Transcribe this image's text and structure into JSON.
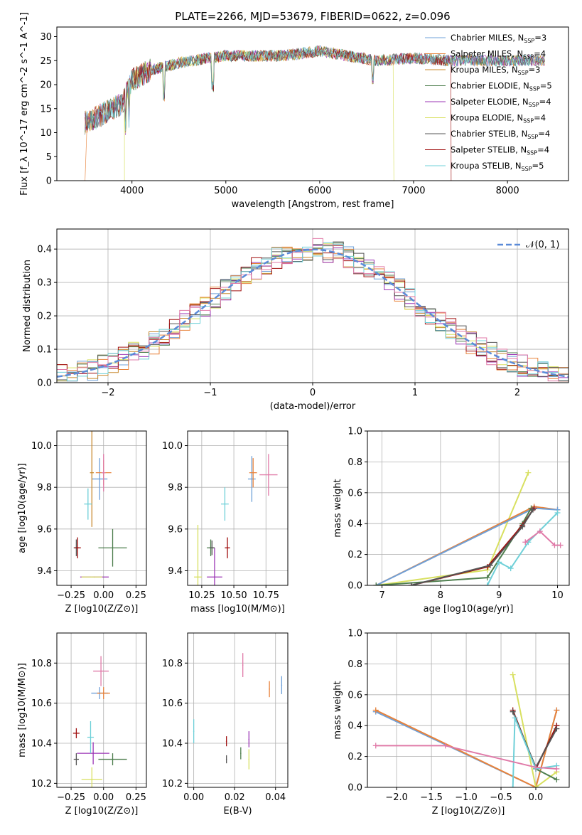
{
  "title": "PLATE=2266, MJD=53679, FIBERID=0622, z=0.096",
  "colors": {
    "Chabrier MILES": "#6fa0d8",
    "Salpeter MILES": "#e8823a",
    "Kroupa MILES": "#c8892e",
    "Chabrier ELODIE": "#4f7f4f",
    "Salpeter ELODIE": "#9b35b5",
    "Kroupa ELODIE": "#d8e060",
    "Chabrier STELIB": "#555555",
    "Salpeter STELIB": "#a01010",
    "Kroupa STELIB": "#6fd0d8",
    "gaussian": "#5b8bd8",
    "pink": "#e07aa8"
  },
  "chart_data": [
    {
      "type": "line",
      "name": "spectrum",
      "xlabel": "wavelength [Angstrom, rest frame]",
      "ylabel": "Flux [f_λ 10^-17 erg cm^-2 s^-1 A^-1]",
      "xlim": [
        3200,
        8650
      ],
      "ylim": [
        0,
        32
      ],
      "xticks": [
        "4000",
        "5000",
        "6000",
        "7000",
        "8000"
      ],
      "yticks": [
        "0",
        "5",
        "10",
        "15",
        "20",
        "25",
        "30"
      ],
      "legend_position": "right",
      "legend": [
        {
          "model": "Chabrier MILES",
          "n": "3"
        },
        {
          "model": "Salpeter MILES",
          "n": "4"
        },
        {
          "model": "Kroupa MILES",
          "n": "3"
        },
        {
          "model": "Chabrier ELODIE",
          "n": "5"
        },
        {
          "model": "Salpeter ELODIE",
          "n": "4"
        },
        {
          "model": "Kroupa ELODIE",
          "n": "4"
        },
        {
          "model": "Chabrier STELIB",
          "n": "4"
        },
        {
          "model": "Salpeter STELIB",
          "n": "4"
        },
        {
          "model": "Kroupa STELIB",
          "n": "5"
        }
      ],
      "continuum_x": [
        3500,
        3700,
        3900,
        4000,
        4200,
        4500,
        4800,
        5000,
        5300,
        5600,
        6000,
        6300,
        6600,
        7000,
        7400,
        7800,
        8200,
        8400
      ],
      "continuum_y": [
        12,
        14,
        16,
        21,
        23,
        24.5,
        25.5,
        26,
        26,
        26,
        27,
        26,
        25,
        25.5,
        25,
        25,
        25,
        25
      ]
    },
    {
      "type": "line",
      "name": "residual-histogram",
      "xlabel": "(data-model)/error",
      "ylabel": "Normed distribution",
      "xlim": [
        -2.5,
        2.5
      ],
      "ylim": [
        0,
        0.46
      ],
      "xticks": [
        "−2",
        "−1",
        "0",
        "1",
        "2"
      ],
      "yticks": [
        "0.0",
        "0.1",
        "0.2",
        "0.3",
        "0.4"
      ],
      "legend_label": "𝒩(0, 1)",
      "legend_position": "top-right",
      "grid": true
    },
    {
      "type": "scatter",
      "name": "age-vs-Z",
      "xlabel": "Z [log10(Z/Z⊙)]",
      "ylabel": "age  [log10(age/yr)]",
      "xlim": [
        -0.36,
        0.33
      ],
      "ylim": [
        9.33,
        10.07
      ],
      "xticks": [
        "−0.25",
        "0.00",
        "0.25"
      ],
      "yticks": [
        "9.4",
        "9.6",
        "9.8",
        "10.0"
      ],
      "points": [
        {
          "s": "Chabrier MILES",
          "x": -0.03,
          "y": 9.84,
          "xe": 0.12,
          "ye": 0.2
        },
        {
          "s": "Salpeter MILES",
          "x": 0.0,
          "y": 9.87,
          "xe": 0.12,
          "ye": 0.12
        },
        {
          "s": "Kroupa MILES",
          "x": -0.09,
          "y": 9.87,
          "xe": 0.03,
          "ye": 0.52
        },
        {
          "s": "Chabrier ELODIE",
          "x": 0.07,
          "y": 9.51,
          "xe": 0.22,
          "ye": 0.18
        },
        {
          "s": "Salpeter ELODIE",
          "x": -0.07,
          "y": 9.37,
          "xe": 0.22,
          "ye": 0.0
        },
        {
          "s": "Kroupa ELODIE",
          "x": -0.09,
          "y": 9.37,
          "xe": 0.16,
          "ye": 0.0
        },
        {
          "s": "Chabrier STELIB",
          "x": -0.21,
          "y": 9.51,
          "xe": 0.04,
          "ye": 0.08
        },
        {
          "s": "Salpeter STELIB",
          "x": -0.2,
          "y": 9.51,
          "xe": 0.05,
          "ye": 0.1
        },
        {
          "s": "Kroupa STELIB",
          "x": -0.12,
          "y": 9.72,
          "xe": 0.06,
          "ye": 0.15
        },
        {
          "s": "pink",
          "x": 0.0,
          "y": 9.87,
          "xe": 0.03,
          "ye": 0.18
        }
      ]
    },
    {
      "type": "scatter",
      "name": "age-vs-mass",
      "xlabel": "mass [log10(M/M⊙)]",
      "ylabel": "",
      "xlim": [
        10.14,
        10.92
      ],
      "ylim": [
        9.33,
        10.07
      ],
      "xticks": [
        "10.25",
        "10.50",
        "10.75"
      ],
      "yticks": [
        "9.4",
        "9.6",
        "9.8",
        "10.0"
      ],
      "points": [
        {
          "s": "Chabrier MILES",
          "x": 10.64,
          "y": 9.84,
          "xe": 0.06,
          "ye": 0.22
        },
        {
          "s": "Salpeter MILES",
          "x": 10.65,
          "y": 9.87,
          "xe": 0.06,
          "ye": 0.14
        },
        {
          "s": "Chabrier ELODIE",
          "x": 10.32,
          "y": 9.51,
          "xe": 0.06,
          "ye": 0.08
        },
        {
          "s": "Salpeter ELODIE",
          "x": 10.35,
          "y": 9.37,
          "xe": 0.12,
          "ye": 0.28
        },
        {
          "s": "Kroupa ELODIE",
          "x": 10.22,
          "y": 9.37,
          "xe": 0.06,
          "ye": 0.5
        },
        {
          "s": "Chabrier STELIB",
          "x": 10.33,
          "y": 9.51,
          "xe": 0.04,
          "ye": 0.07
        },
        {
          "s": "Salpeter STELIB",
          "x": 10.45,
          "y": 9.51,
          "xe": 0.04,
          "ye": 0.1
        },
        {
          "s": "Kroupa STELIB",
          "x": 10.43,
          "y": 9.72,
          "xe": 0.06,
          "ye": 0.16
        },
        {
          "s": "pink",
          "x": 10.77,
          "y": 9.86,
          "xe": 0.14,
          "ye": 0.2
        }
      ]
    },
    {
      "type": "line",
      "name": "mass-weight-vs-age",
      "xlabel": "age  [log10(age/yr)]",
      "ylabel": "mass weight",
      "xlim": [
        6.75,
        10.2
      ],
      "ylim": [
        0,
        1.0
      ],
      "xticks": [
        "7",
        "8",
        "9",
        "10"
      ],
      "yticks": [
        "0.0",
        "0.2",
        "0.4",
        "0.6",
        "0.8",
        "1.0"
      ],
      "series": [
        {
          "s": "Kroupa ELODIE",
          "x": [
            6.9,
            8.8,
            9.5
          ],
          "y": [
            0.0,
            0.1,
            0.73
          ]
        },
        {
          "s": "Salpeter MILES",
          "x": [
            6.9,
            9.6,
            10.0
          ],
          "y": [
            0.0,
            0.51,
            0.49
          ]
        },
        {
          "s": "Chabrier MILES",
          "x": [
            6.9,
            9.6,
            10.0
          ],
          "y": [
            0.0,
            0.5,
            0.49
          ]
        },
        {
          "s": "Chabrier ELODIE",
          "x": [
            6.9,
            8.8,
            9.4,
            9.55
          ],
          "y": [
            0.0,
            0.05,
            0.4,
            0.5
          ]
        },
        {
          "s": "Salpeter STELIB",
          "x": [
            7.5,
            8.8,
            9.4,
            9.6
          ],
          "y": [
            0.0,
            0.12,
            0.39,
            0.5
          ]
        },
        {
          "s": "Chabrier STELIB",
          "x": [
            7.5,
            8.85,
            9.4,
            9.58
          ],
          "y": [
            0.0,
            0.13,
            0.38,
            0.49
          ]
        },
        {
          "s": "Kroupa STELIB",
          "x": [
            8.8,
            9.0,
            9.2,
            9.5,
            10.0
          ],
          "y": [
            0.0,
            0.15,
            0.11,
            0.28,
            0.47
          ]
        },
        {
          "s": "pink",
          "x": [
            9.45,
            9.7,
            9.95,
            10.05
          ],
          "y": [
            0.28,
            0.35,
            0.26,
            0.26
          ]
        }
      ]
    },
    {
      "type": "scatter",
      "name": "mass-vs-Z",
      "xlabel": "Z [log10(Z/Z⊙)]",
      "ylabel": "mass [log10(M/M⊙)]",
      "xlim": [
        -0.36,
        0.33
      ],
      "ylim": [
        10.18,
        10.95
      ],
      "xticks": [
        "−0.25",
        "0.00",
        "0.25"
      ],
      "yticks": [
        "10.2",
        "10.4",
        "10.6",
        "10.8"
      ],
      "points": [
        {
          "s": "Chabrier MILES",
          "x": -0.03,
          "y": 10.65,
          "xe": 0.13,
          "ye": 0.06
        },
        {
          "s": "Salpeter MILES",
          "x": 0.0,
          "y": 10.65,
          "xe": 0.1,
          "ye": 0.06
        },
        {
          "s": "Chabrier ELODIE",
          "x": 0.07,
          "y": 10.32,
          "xe": 0.22,
          "ye": 0.06
        },
        {
          "s": "Salpeter ELODIE",
          "x": -0.08,
          "y": 10.35,
          "xe": 0.25,
          "ye": 0.11
        },
        {
          "s": "Kroupa ELODIE",
          "x": -0.09,
          "y": 10.22,
          "xe": 0.16,
          "ye": 0.12
        },
        {
          "s": "Chabrier STELIB",
          "x": -0.21,
          "y": 10.32,
          "xe": 0.04,
          "ye": 0.06
        },
        {
          "s": "Salpeter STELIB",
          "x": -0.21,
          "y": 10.45,
          "xe": 0.05,
          "ye": 0.05
        },
        {
          "s": "Kroupa STELIB",
          "x": -0.1,
          "y": 10.43,
          "xe": 0.05,
          "ye": 0.16
        },
        {
          "s": "pink",
          "x": -0.02,
          "y": 10.76,
          "xe": 0.12,
          "ye": 0.15
        }
      ]
    },
    {
      "type": "scatter",
      "name": "mass-vs-EBV",
      "xlabel": "E(B-V)",
      "ylabel": "",
      "xlim": [
        -0.003,
        0.046
      ],
      "ylim": [
        10.18,
        10.95
      ],
      "xticks": [
        "0.00",
        "0.02",
        "0.04"
      ],
      "yticks": [
        "10.2",
        "10.4",
        "10.6",
        "10.8"
      ],
      "points": [
        {
          "s": "Chabrier MILES",
          "x": 0.043,
          "y": 10.69,
          "ye": 0.09
        },
        {
          "s": "Salpeter MILES",
          "x": 0.037,
          "y": 10.67,
          "ye": 0.08
        },
        {
          "s": "Chabrier ELODIE",
          "x": 0.023,
          "y": 10.35,
          "ye": 0.06
        },
        {
          "s": "Salpeter ELODIE",
          "x": 0.027,
          "y": 10.42,
          "ye": 0.08
        },
        {
          "s": "Kroupa ELODIE",
          "x": 0.027,
          "y": 10.32,
          "ye": 0.1
        },
        {
          "s": "Chabrier STELIB",
          "x": 0.016,
          "y": 10.32,
          "ye": 0.04
        },
        {
          "s": "Salpeter STELIB",
          "x": 0.016,
          "y": 10.41,
          "ye": 0.05
        },
        {
          "s": "Kroupa STELIB",
          "x": 0.0,
          "y": 10.46,
          "ye": 0.12
        },
        {
          "s": "pink",
          "x": 0.024,
          "y": 10.79,
          "ye": 0.12
        }
      ]
    },
    {
      "type": "line",
      "name": "mass-weight-vs-Z",
      "xlabel": "Z [log10(Z/Z⊙)]",
      "ylabel": "mass weight",
      "xlim": [
        -2.42,
        0.48
      ],
      "ylim": [
        0,
        1.0
      ],
      "xticks": [
        "−2.0",
        "−1.5",
        "−1.0",
        "−0.5",
        "0.0"
      ],
      "yticks": [
        "0.0",
        "0.2",
        "0.4",
        "0.6",
        "0.8",
        "1.0"
      ],
      "series": [
        {
          "s": "Chabrier MILES",
          "x": [
            -2.3,
            0.0,
            0.3
          ],
          "y": [
            0.49,
            0.0,
            0.5
          ]
        },
        {
          "s": "Salpeter MILES",
          "x": [
            -2.3,
            0.0,
            0.3
          ],
          "y": [
            0.5,
            0.0,
            0.5
          ]
        },
        {
          "s": "Kroupa ELODIE",
          "x": [
            -0.33,
            0.0,
            0.3
          ],
          "y": [
            0.73,
            0.0,
            0.1
          ]
        },
        {
          "s": "Chabrier ELODIE",
          "x": [
            0.3,
            0.0,
            0.3
          ],
          "y": [
            0.05,
            0.12,
            0.4
          ]
        },
        {
          "s": "Salpeter STELIB",
          "x": [
            -0.33,
            0.0,
            0.3
          ],
          "y": [
            0.5,
            0.12,
            0.4
          ]
        },
        {
          "s": "Chabrier STELIB",
          "x": [
            -0.33,
            0.0,
            0.3
          ],
          "y": [
            0.49,
            0.13,
            0.38
          ]
        },
        {
          "s": "Kroupa STELIB",
          "x": [
            -0.33,
            -0.3,
            0.0,
            0.3
          ],
          "y": [
            0.0,
            0.45,
            0.12,
            0.14
          ]
        },
        {
          "s": "pink",
          "x": [
            -2.3,
            -1.3,
            0.0,
            0.3
          ],
          "y": [
            0.27,
            0.27,
            0.13,
            0.12
          ]
        }
      ]
    }
  ]
}
